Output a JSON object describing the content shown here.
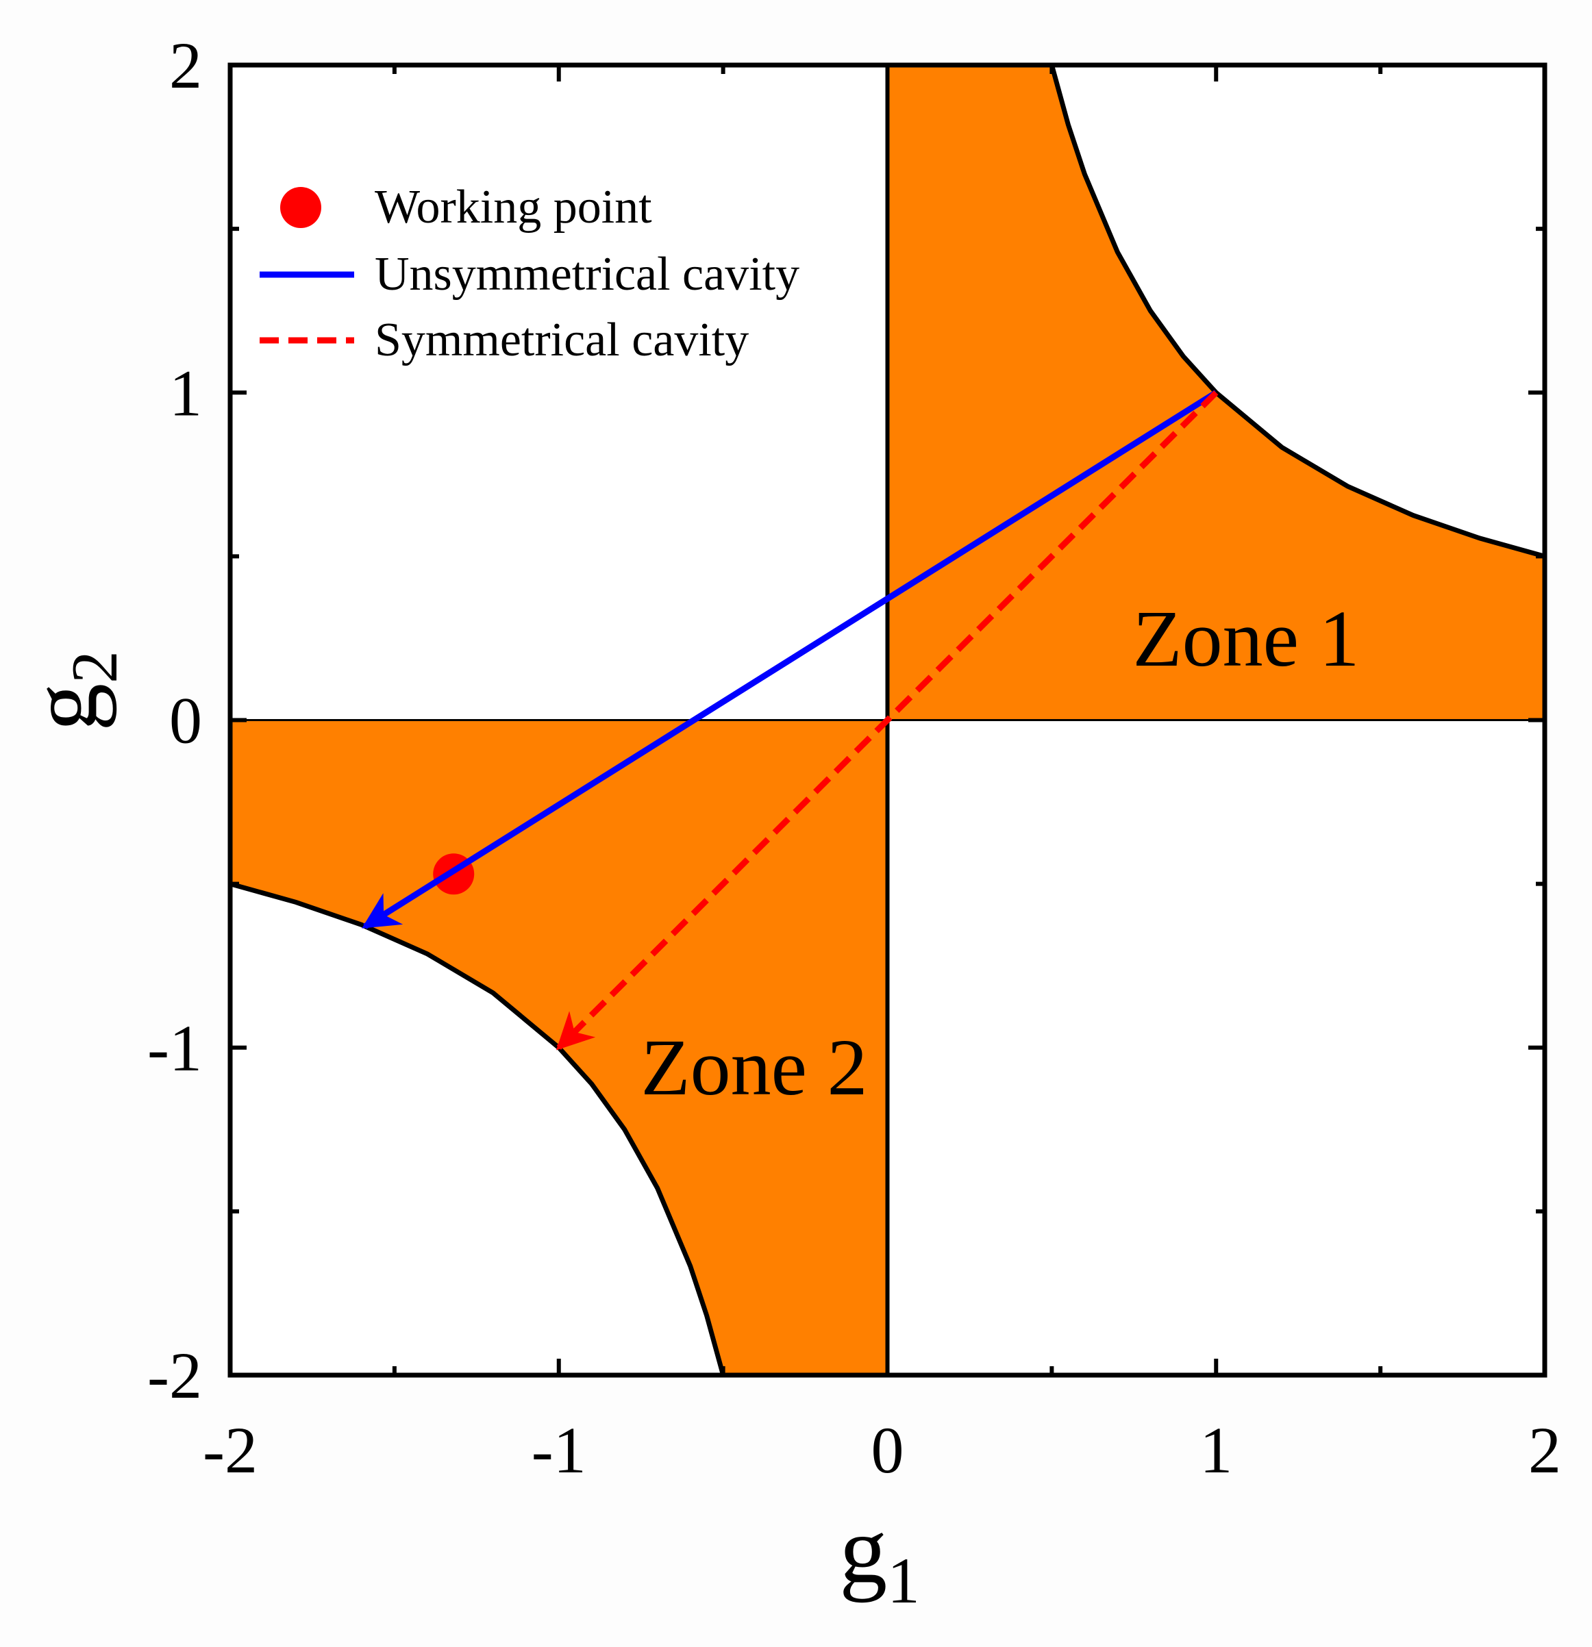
{
  "chart_data": {
    "type": "line",
    "xlabel": "g",
    "xlabel_sub": "1",
    "ylabel": "g",
    "ylabel_sub": "2",
    "xlim": [
      -2,
      2
    ],
    "ylim": [
      -2,
      2
    ],
    "xticks": [
      -2,
      -1,
      0,
      1,
      2
    ],
    "yticks": [
      -2,
      -1,
      0,
      1,
      2
    ],
    "xminorticks": [
      -1.5,
      -0.5,
      0.5,
      1.5
    ],
    "yminorticks": [
      -1.5,
      -0.5,
      0.5,
      1.5
    ],
    "regions": [
      {
        "color": "#ff8000",
        "x": [
          0.5,
          0.55,
          0.6,
          0.7,
          0.8,
          0.9,
          1,
          1.2,
          1.4,
          1.6,
          1.8,
          2
        ],
        "y": [
          2,
          1.818,
          1.667,
          1.429,
          1.25,
          1.111,
          1,
          0.833,
          0.714,
          0.625,
          0.556,
          0.5
        ]
      },
      {
        "color": "#ff8000",
        "x": [
          -0.5,
          -0.55,
          -0.6,
          -0.7,
          -0.8,
          -0.9,
          -1,
          -1.2,
          -1.4,
          -1.6,
          -1.8,
          -2
        ],
        "y": [
          -2,
          -1.818,
          -1.667,
          -1.429,
          -1.25,
          -1.111,
          -1,
          -0.833,
          -0.714,
          -0.625,
          -0.556,
          -0.5
        ]
      }
    ],
    "series": [
      {
        "name": "Working point",
        "type": "scatter",
        "color": "#ff0000",
        "x": [
          -1.32
        ],
        "y": [
          -0.47
        ]
      },
      {
        "name": "Unsymmetrical cavity",
        "type": "arrow",
        "color": "#0000ff",
        "dashed": false,
        "x": [
          1,
          -1.59
        ],
        "y": [
          1,
          -0.63
        ]
      },
      {
        "name": "Symmetrical cavity",
        "type": "arrow",
        "color": "#ff0000",
        "dashed": true,
        "x": [
          1,
          -1
        ],
        "y": [
          1,
          -1
        ]
      }
    ],
    "annotations": [
      "Zone 1",
      "Zone 2"
    ]
  }
}
